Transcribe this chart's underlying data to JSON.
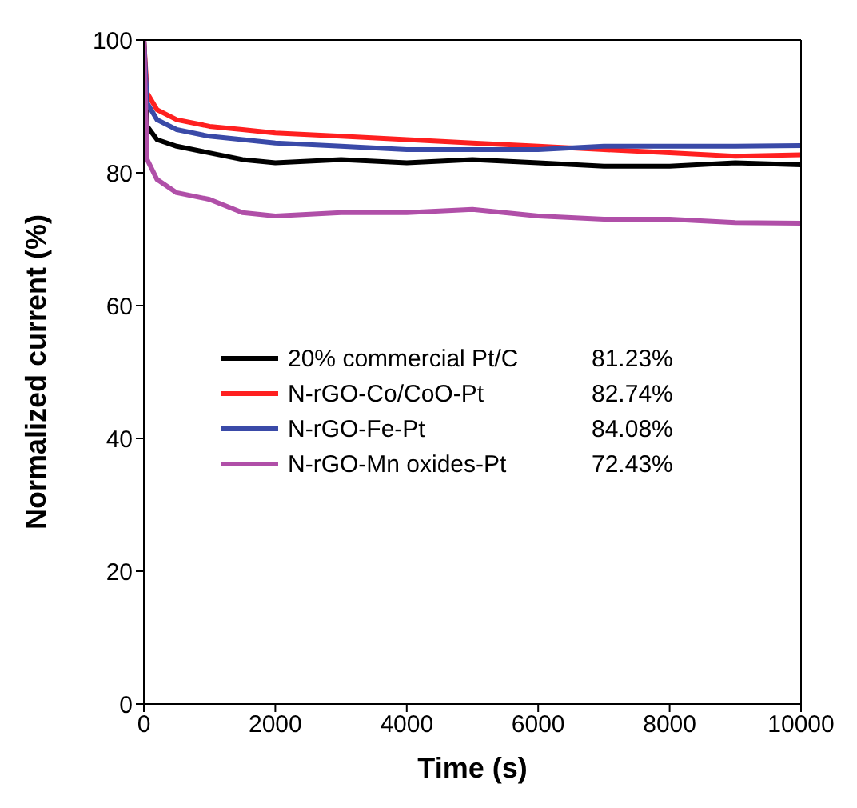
{
  "chart_data": {
    "type": "line",
    "xlabel": "Time (s)",
    "ylabel": "Normalized current (%)",
    "x": [
      0,
      50,
      200,
      500,
      1000,
      1500,
      2000,
      3000,
      4000,
      5000,
      6000,
      7000,
      8000,
      9000,
      10000
    ],
    "xlim": [
      0,
      10000
    ],
    "xticks": [
      0,
      2000,
      4000,
      6000,
      8000,
      10000
    ],
    "ylim": [
      0,
      100
    ],
    "yticks": [
      0,
      20,
      40,
      60,
      80,
      100
    ],
    "legend": "left",
    "marker": "none",
    "line_style": "solid",
    "series": [
      {
        "name": "20% commercial Pt/C",
        "color": "#000000",
        "values": [
          100,
          87,
          85,
          84,
          83,
          82,
          81.5,
          82,
          81.5,
          82,
          81.5,
          81,
          81,
          81.5,
          81.2
        ]
      },
      {
        "name": "N-rGO-Co/CoO-Pt",
        "color": "#ff2020",
        "values": [
          100,
          92,
          89.5,
          88,
          87,
          86.5,
          86,
          85.5,
          85,
          84.5,
          84,
          83.5,
          83,
          82.5,
          82.7
        ]
      },
      {
        "name": "N-rGO-Fe-Pt",
        "color": "#3a4aa8",
        "values": [
          100,
          90.5,
          88,
          86.5,
          85.5,
          85,
          84.5,
          84,
          83.5,
          83.5,
          83.5,
          84,
          84,
          84,
          84.1
        ]
      },
      {
        "name": "N-rGO-Mn oxides-Pt",
        "color": "#b04fa8",
        "values": [
          100,
          82,
          79,
          77,
          76,
          74,
          73.5,
          74,
          74,
          74.5,
          73.5,
          73,
          73,
          72.5,
          72.4
        ]
      }
    ],
    "annotations": [
      "81.23%",
      "82.74%",
      "84.08%",
      "72.43%"
    ]
  }
}
